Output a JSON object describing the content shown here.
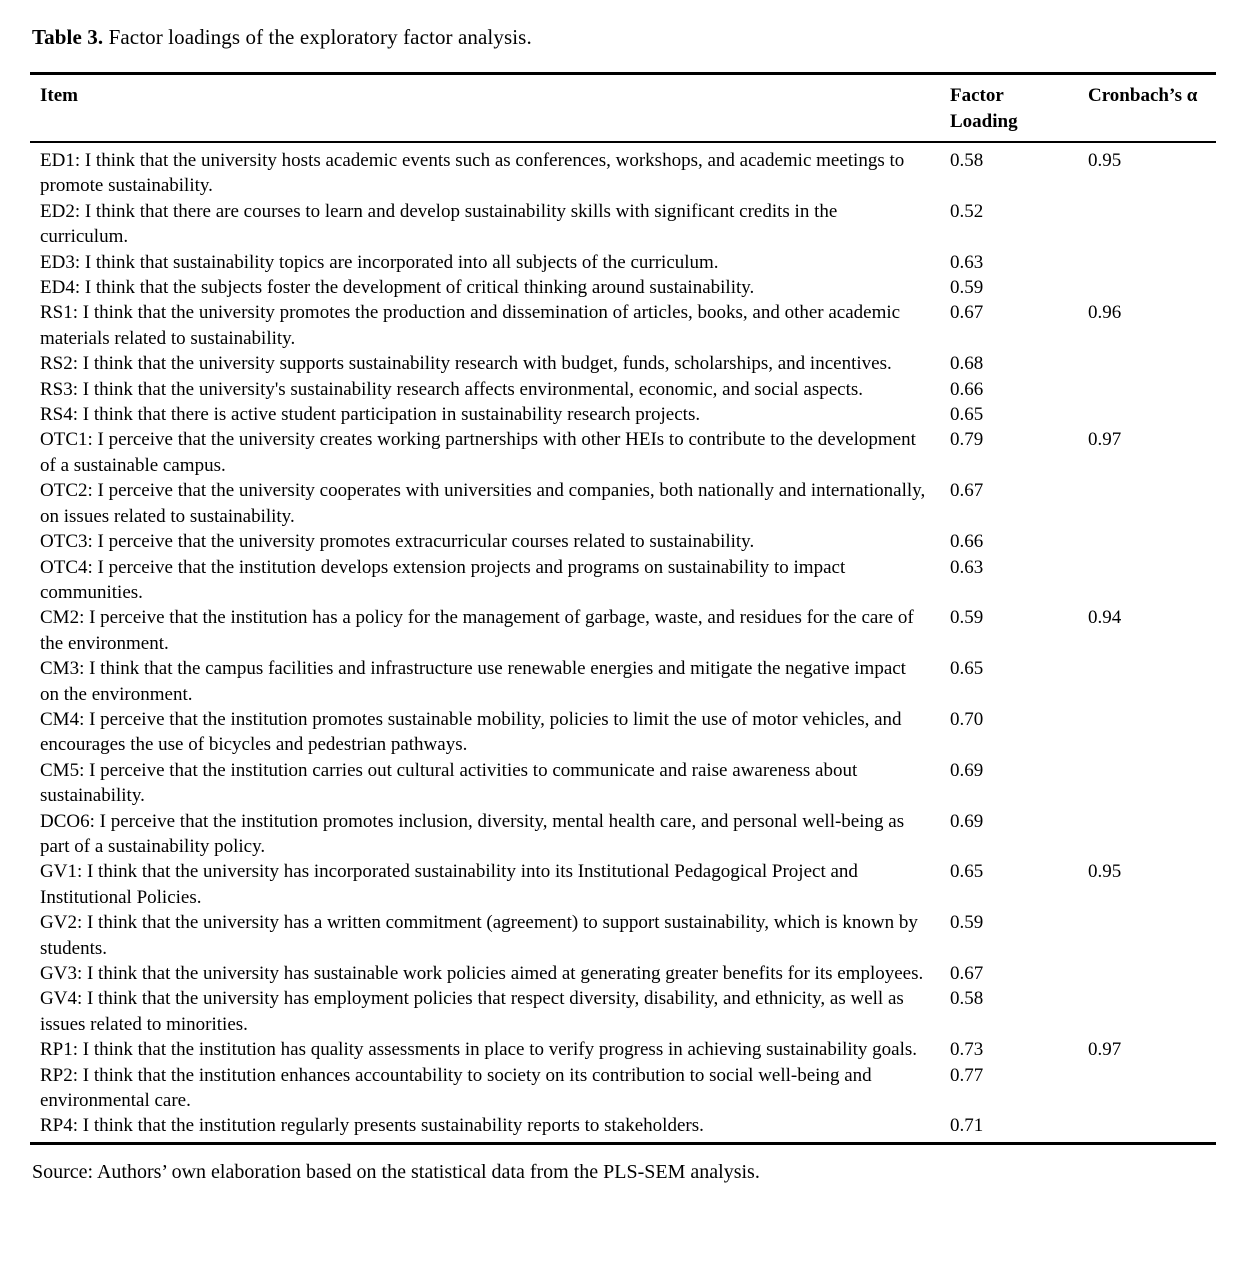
{
  "title": {
    "label": "Table 3.",
    "caption": " Factor loadings of the exploratory factor analysis."
  },
  "table": {
    "header": {
      "item": "Item",
      "factor_loading": "Factor Loading",
      "cronbach_alpha": "Cronbach’s α"
    },
    "rows": [
      {
        "item": "ED1: I think that the university hosts academic events such as conferences, workshops, and academic meetings to promote sustainability.",
        "loading": "0.58",
        "alpha": "0.95"
      },
      {
        "item": "ED2: I think that there are courses to learn and develop sustainability skills with significant credits in the curriculum.",
        "loading": "0.52",
        "alpha": ""
      },
      {
        "item": "ED3: I think that sustainability topics are incorporated into all subjects of the curriculum.",
        "loading": "0.63",
        "alpha": ""
      },
      {
        "item": "ED4: I think that the subjects foster the development of critical thinking around sustainability.",
        "loading": "0.59",
        "alpha": ""
      },
      {
        "item": "RS1: I think that the university promotes the production and dissemination of articles, books, and other academic materials related to sustainability.",
        "loading": "0.67",
        "alpha": "0.96"
      },
      {
        "item": "RS2: I think that the university supports sustainability research with budget, funds, scholarships, and incentives.",
        "loading": "0.68",
        "alpha": ""
      },
      {
        "item": "RS3: I think that the university's sustainability research affects environmental, economic, and social aspects.",
        "loading": "0.66",
        "alpha": ""
      },
      {
        "item": "RS4: I think that there is active student participation in sustainability research projects.",
        "loading": "0.65",
        "alpha": ""
      },
      {
        "item": "OTC1: I perceive that the university creates working partnerships with other HEIs to contribute to the development of a sustainable campus.",
        "loading": "0.79",
        "alpha": "0.97"
      },
      {
        "item": "OTC2: I perceive that the university cooperates with universities and companies, both nationally and internationally, on issues related to sustainability.",
        "loading": "0.67",
        "alpha": ""
      },
      {
        "item": "OTC3: I perceive that the university promotes extracurricular courses related to sustainability.",
        "loading": "0.66",
        "alpha": ""
      },
      {
        "item": "OTC4: I perceive that the institution develops extension projects and programs on sustainability to impact communities.",
        "loading": "0.63",
        "alpha": ""
      },
      {
        "item": "CM2: I perceive that the institution has a policy for the management of garbage, waste, and residues for the care of the environment.",
        "loading": "0.59",
        "alpha": "0.94"
      },
      {
        "item": "CM3: I think that the campus facilities and infrastructure use renewable energies and mitigate the negative impact on the environment.",
        "loading": "0.65",
        "alpha": ""
      },
      {
        "item": "CM4: I perceive that the institution promotes sustainable mobility, policies to limit the use of motor vehicles, and encourages the use of bicycles and pedestrian pathways.",
        "loading": "0.70",
        "alpha": ""
      },
      {
        "item": "CM5: I perceive that the institution carries out cultural activities to communicate and raise awareness about sustainability.",
        "loading": "0.69",
        "alpha": ""
      },
      {
        "item": "DCO6: I perceive that the institution promotes inclusion, diversity, mental health care, and personal well-being as part of a sustainability policy.",
        "loading": "0.69",
        "alpha": ""
      },
      {
        "item": "GV1: I think that the university has incorporated sustainability into its Institutional Pedagogical Project and Institutional Policies.",
        "loading": "0.65",
        "alpha": "0.95"
      },
      {
        "item": "GV2: I think that the university has a written commitment (agreement) to support sustainability, which is known by students.",
        "loading": "0.59",
        "alpha": ""
      },
      {
        "item": "GV3: I think that the university has sustainable work policies aimed at generating greater benefits for its employees.",
        "loading": "0.67",
        "alpha": ""
      },
      {
        "item": "GV4: I think that the university has employment policies that respect diversity, disability, and ethnicity, as well as issues related to minorities.",
        "loading": "0.58",
        "alpha": ""
      },
      {
        "item": "RP1: I think that the institution has quality assessments in place to verify progress in achieving sustainability goals.",
        "loading": "0.73",
        "alpha": "0.97"
      },
      {
        "item": "RP2: I think that the institution enhances accountability to society on its contribution to social well-being and environmental care.",
        "loading": "0.77",
        "alpha": ""
      },
      {
        "item": "RP4: I think that the institution regularly presents sustainability reports to stakeholders.",
        "loading": "0.71",
        "alpha": ""
      }
    ]
  },
  "source_note": "Source: Authors’ own elaboration based on the statistical data from the PLS-SEM analysis."
}
